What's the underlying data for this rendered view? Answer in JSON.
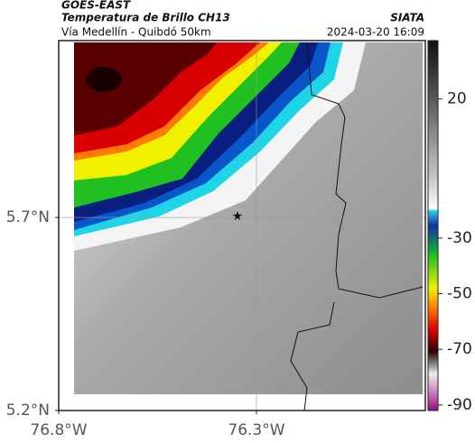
{
  "header": {
    "source": "GOES-EAST",
    "title": "Temperatura de Brillo CH13",
    "brand": "SIATA",
    "subtitle": "Vía Medellín - Quibdó 50km",
    "timestamp": "2024-03-20 16:09"
  },
  "map": {
    "xlim": [
      -76.8,
      -75.873
    ],
    "ylim": [
      5.2,
      6.158
    ],
    "xticks": [
      {
        "value": -76.8,
        "label": "76.8°W"
      },
      {
        "value": -76.3,
        "label": "76.3°W"
      }
    ],
    "yticks": [
      {
        "value": 5.7,
        "label": "5.7°N"
      },
      {
        "value": 5.2,
        "label": "5.2°N"
      }
    ],
    "marker": {
      "lon": -76.348,
      "lat": 5.702
    }
  },
  "colorbar": {
    "lim": [
      -92,
      41
    ],
    "ticks": [
      20,
      -30,
      -50,
      -70,
      -90
    ]
  }
}
